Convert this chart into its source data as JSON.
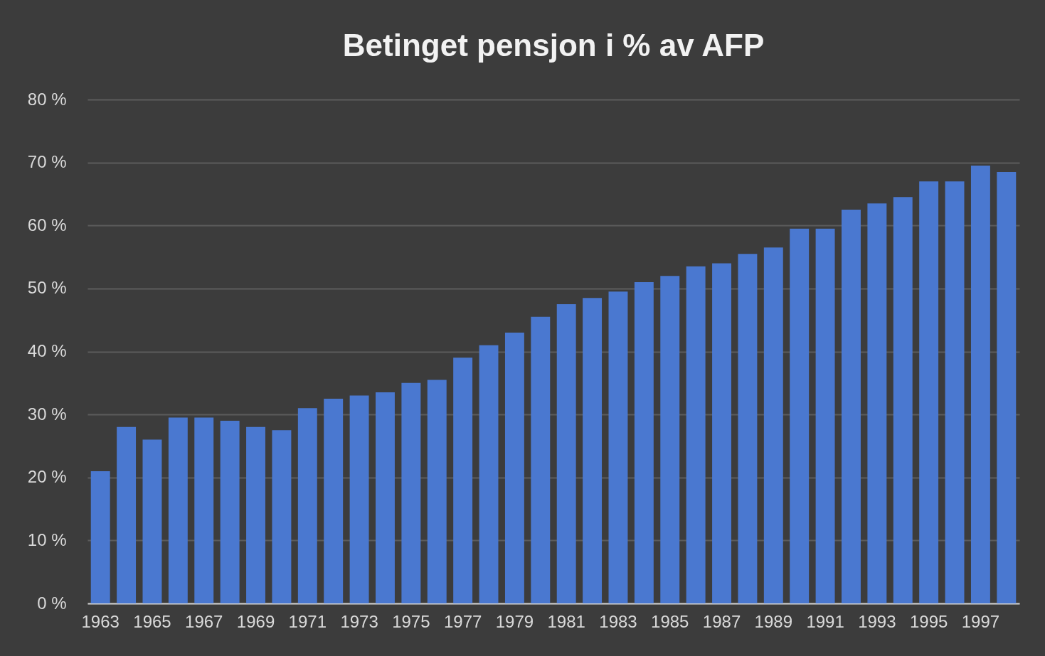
{
  "chart_data": {
    "type": "bar",
    "title": "Betinget pensjon i % av AFP",
    "categories": [
      "1963",
      null,
      "1965",
      null,
      "1967",
      null,
      "1969",
      null,
      "1971",
      null,
      "1973",
      null,
      "1975",
      null,
      "1977",
      null,
      "1979",
      null,
      "1981",
      null,
      "1983",
      null,
      "1985",
      null,
      "1987",
      null,
      "1989",
      null,
      "1991",
      null,
      "1993",
      null,
      "1995",
      null,
      "1997",
      null
    ],
    "values": [
      21,
      28,
      26,
      29.5,
      29.5,
      29,
      28,
      27.5,
      31,
      32.5,
      33,
      33.5,
      35,
      35.5,
      39,
      41,
      43,
      45.5,
      47.5,
      48.5,
      49.5,
      51,
      52,
      53.5,
      54,
      55.5,
      56.5,
      59.5,
      59.5,
      62.5,
      63.5,
      64.5,
      67,
      67,
      69.5,
      68.5
    ],
    "color": "#4a78d0",
    "ylim": [
      0,
      80
    ],
    "yticks": [
      {
        "value": 0,
        "label": "0 %"
      },
      {
        "value": 10,
        "label": "10 %"
      },
      {
        "value": 20,
        "label": "20 %"
      },
      {
        "value": 30,
        "label": "30 %"
      },
      {
        "value": 40,
        "label": "40 %"
      },
      {
        "value": 50,
        "label": "50 %"
      },
      {
        "value": 60,
        "label": "60 %"
      },
      {
        "value": 70,
        "label": "70 %"
      },
      {
        "value": 80,
        "label": "80 %"
      }
    ],
    "grid": "y"
  }
}
